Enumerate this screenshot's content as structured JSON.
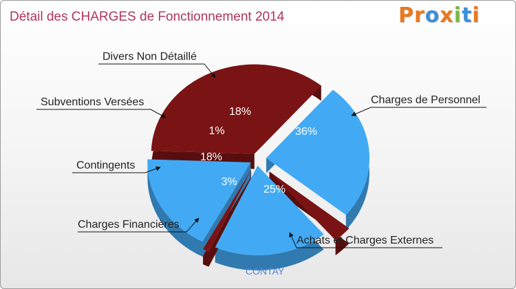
{
  "title": "Détail des CHARGES de Fonctionnement 2014",
  "logo": {
    "text": "Proxiti",
    "letters": [
      {
        "ch": "P",
        "color": "#e8791e"
      },
      {
        "ch": "r",
        "color": "#e8791e"
      },
      {
        "ch": "o",
        "color": "#3b8fd9"
      },
      {
        "ch": "x",
        "color": "#e8791e"
      },
      {
        "ch": "i",
        "color": "#7bb842"
      },
      {
        "ch": "t",
        "color": "#3b8fd9"
      },
      {
        "ch": "i",
        "color": "#e8791e"
      }
    ]
  },
  "colors": {
    "maroon": "#7a1414",
    "blue": "#42aaf5",
    "title": "#b1345c",
    "city": "#4d86d6"
  },
  "chart_data": {
    "type": "pie",
    "title": "Détail des CHARGES de Fonctionnement 2014",
    "caption": "CONTAY",
    "slices": [
      {
        "label": "Charges de Personnel",
        "value": 36,
        "pct_label": "36%",
        "color": "#7a1414"
      },
      {
        "label": "Achats et Charges Externes",
        "value": 25,
        "pct_label": "25%",
        "color": "#42aaf5"
      },
      {
        "label": "Charges Financières",
        "value": 3,
        "pct_label": "3%",
        "color": "#7a1414"
      },
      {
        "label": "Contingents",
        "value": 18,
        "pct_label": "18%",
        "color": "#42aaf5"
      },
      {
        "label": "Subventions Versées",
        "value": 1,
        "pct_label": "1%",
        "color": "#7a1414"
      },
      {
        "label": "Divers Non Détaillé",
        "value": 18,
        "pct_label": "18%",
        "color": "#42aaf5"
      }
    ]
  }
}
